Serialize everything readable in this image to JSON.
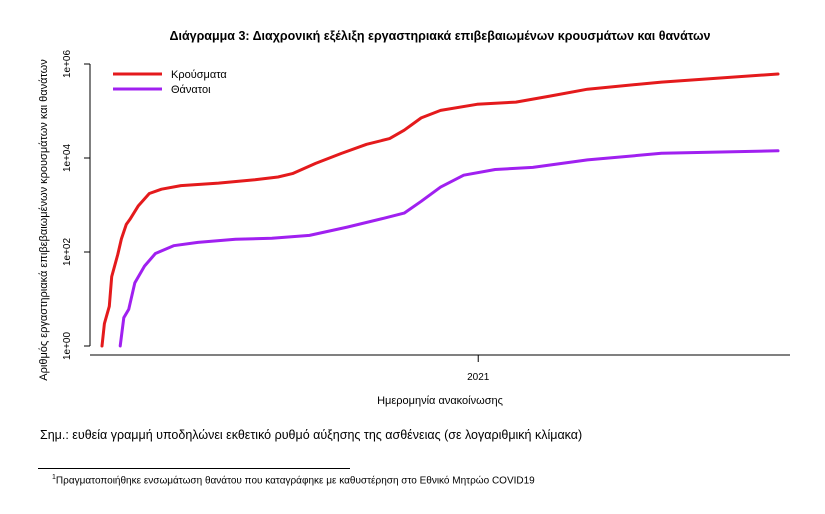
{
  "chart_data": {
    "type": "line",
    "title": "Διάγραμμα 3: Διαχρονική εξέλιξη εργαστηριακά επιβεβαιωμένων κρουσμάτων και θανάτων",
    "xlabel": "Ημερομηνία ανακοίνωσης",
    "ylabel": "Αριθμός εργαστηριακά επιβεβαιωμένων κρουσμάτων και θανάτων",
    "y_scale": "log",
    "ylim": [
      1,
      1000000
    ],
    "yticks": [
      {
        "value": 1,
        "label": "1e+00"
      },
      {
        "value": 100,
        "label": "1e+02"
      },
      {
        "value": 10000,
        "label": "1e+04"
      },
      {
        "value": 1000000,
        "label": "1e+06"
      }
    ],
    "xlim": [
      "2020-02-26",
      "2021-09-05"
    ],
    "xticks": [
      {
        "value": "2021-01-01",
        "label": "2021"
      }
    ],
    "legend_position": "top-left",
    "grid": false,
    "series": [
      {
        "name": "Κρούσματα",
        "color": "#e41a1c",
        "points": [
          [
            "2020-02-26",
            1
          ],
          [
            "2020-02-28",
            3
          ],
          [
            "2020-03-03",
            7
          ],
          [
            "2020-03-05",
            30
          ],
          [
            "2020-03-10",
            89
          ],
          [
            "2020-03-13",
            190
          ],
          [
            "2020-03-17",
            387
          ],
          [
            "2020-03-20",
            495
          ],
          [
            "2020-03-27",
            966
          ],
          [
            "2020-04-05",
            1755
          ],
          [
            "2020-04-15",
            2170
          ],
          [
            "2020-05-01",
            2590
          ],
          [
            "2020-06-01",
            2918
          ],
          [
            "2020-07-01",
            3432
          ],
          [
            "2020-07-20",
            3940
          ],
          [
            "2020-08-01",
            4662
          ],
          [
            "2020-08-20",
            7684
          ],
          [
            "2020-09-10",
            12452
          ],
          [
            "2020-10-01",
            19613
          ],
          [
            "2020-10-20",
            25902
          ],
          [
            "2020-11-01",
            38952
          ],
          [
            "2020-11-15",
            71269
          ],
          [
            "2020-12-01",
            103034
          ],
          [
            "2020-12-31",
            138850
          ],
          [
            "2021-02-01",
            154796
          ],
          [
            "2021-03-01",
            207069
          ],
          [
            "2021-04-01",
            291176
          ],
          [
            "2021-06-01",
            412158
          ],
          [
            "2021-09-05",
            614000
          ]
        ]
      },
      {
        "name": "Θάνατοι",
        "color": "#a020f0",
        "points": [
          [
            "2020-03-12",
            1
          ],
          [
            "2020-03-15",
            4
          ],
          [
            "2020-03-19",
            6
          ],
          [
            "2020-03-24",
            22
          ],
          [
            "2020-04-01",
            50
          ],
          [
            "2020-04-10",
            93
          ],
          [
            "2020-04-25",
            136
          ],
          [
            "2020-05-15",
            160
          ],
          [
            "2020-06-15",
            187
          ],
          [
            "2020-07-15",
            196
          ],
          [
            "2020-08-15",
            226
          ],
          [
            "2020-09-15",
            338
          ],
          [
            "2020-10-15",
            520
          ],
          [
            "2020-11-01",
            673
          ],
          [
            "2020-11-15",
            1200
          ],
          [
            "2020-12-01",
            2400
          ],
          [
            "2020-12-20",
            4300
          ],
          [
            "2021-01-15",
            5700
          ],
          [
            "2021-02-15",
            6300
          ],
          [
            "2021-04-01",
            9100
          ],
          [
            "2021-06-01",
            12600
          ],
          [
            "2021-09-05",
            14200
          ]
        ]
      }
    ]
  },
  "note": "Σημ.: ευθεία γραμμή υποδηλώνει εκθετικό ρυθμό αύξησης της ασθένειας (σε λογαριθμική κλίμακα)",
  "footnote": {
    "marker": "1",
    "text": "Πραγματοποιήθηκε ενσωμάτωση θανάτου που καταγράφηκε με καθυστέρηση στο Εθνικό Μητρώο COVID19"
  }
}
